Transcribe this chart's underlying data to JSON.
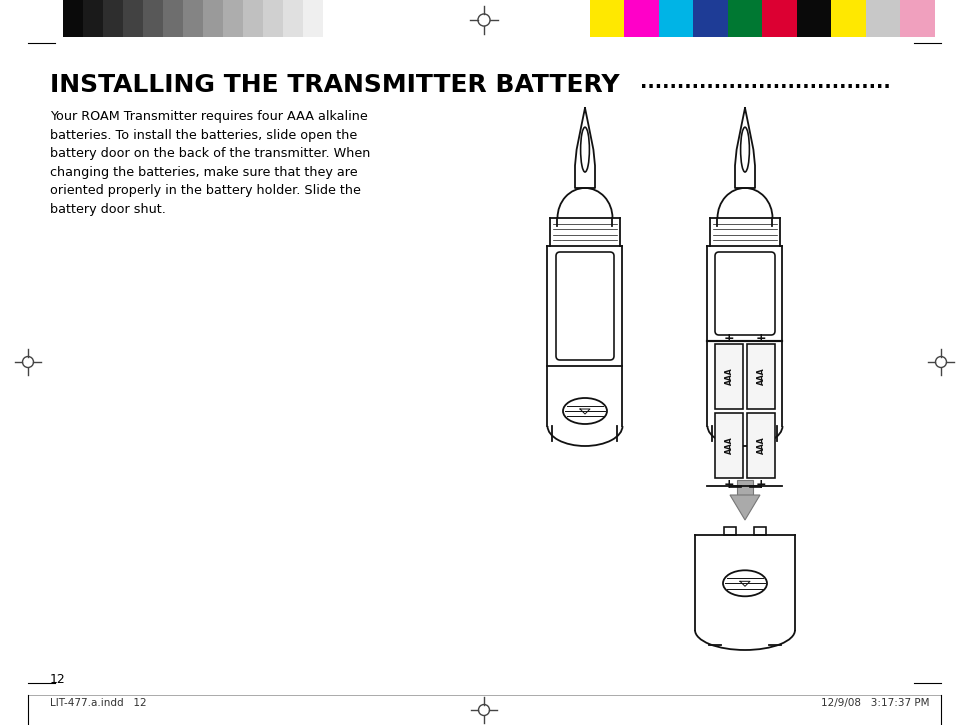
{
  "bg_color": "#ffffff",
  "title": "INSTALLING THE TRANSMITTER BATTERY",
  "dots": "..................................",
  "body_text": "Your ROAM Transmitter requires four AAA alkaline\nbatteries. To install the batteries, slide open the\nbattery door on the back of the transmitter. When\nchanging the batteries, make sure that they are\noriented properly in the battery holder. Slide the\nbattery door shut.",
  "page_number": "12",
  "footer_left": "LIT-477.a.indd   12",
  "footer_right": "12/9/08   3:17:37 PM",
  "top_gray_colors": [
    "#0a0a0a",
    "#1a1a1a",
    "#2e2e2e",
    "#424242",
    "#585858",
    "#6e6e6e",
    "#848484",
    "#9a9a9a",
    "#adadad",
    "#c0c0c0",
    "#d0d0d0",
    "#e0e0e0",
    "#efefef",
    "#ffffff"
  ],
  "top_color_colors": [
    "#ffe800",
    "#ff00c8",
    "#00b4e6",
    "#1e3c96",
    "#007832",
    "#dc0032",
    "#0a0a0a",
    "#ffe800",
    "#c8c8c8",
    "#f0a0be"
  ],
  "line_color": "#000000"
}
